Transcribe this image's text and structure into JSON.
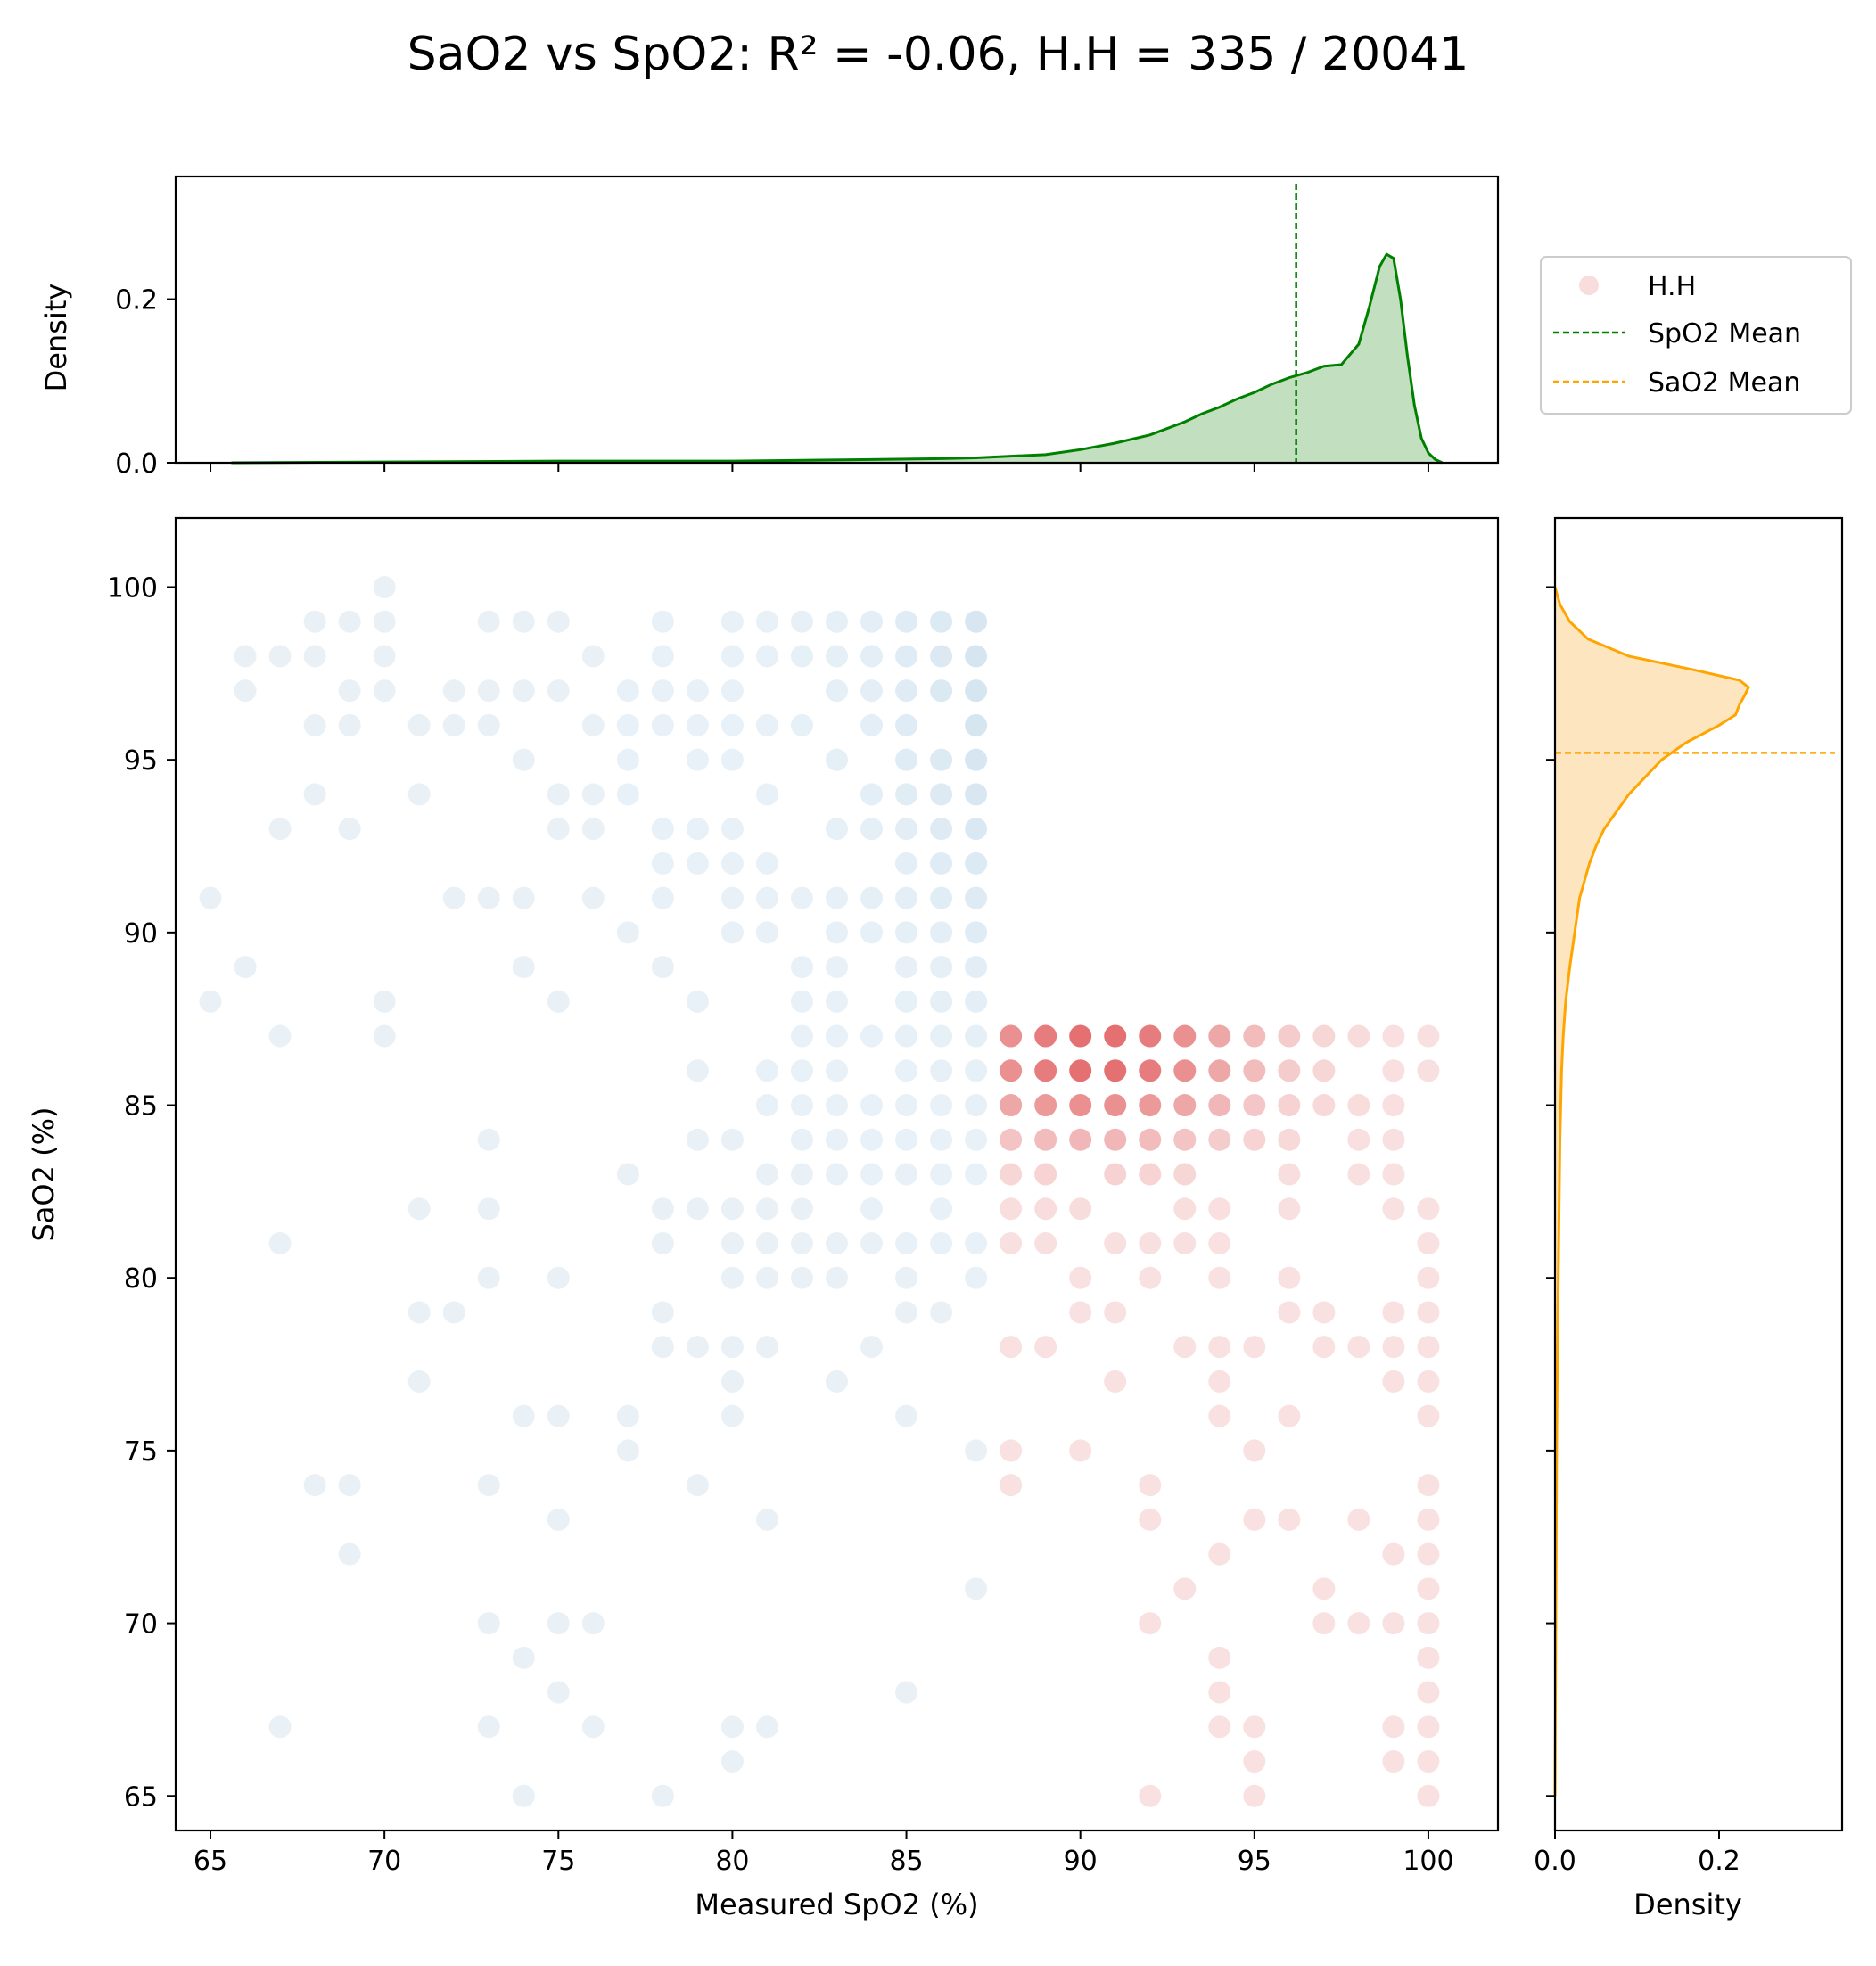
{
  "chart_data": {
    "type": "scatter",
    "title": "SaO2 vs SpO2: R² = -0.06, H.H = 335 / 20041",
    "main": {
      "xlabel": "Measured SpO2 (%)",
      "ylabel": "SaO2 (%)",
      "xlim": [
        64,
        102
      ],
      "ylim": [
        64,
        102
      ],
      "xticks": [
        "65",
        "70",
        "75",
        "80",
        "85",
        "90",
        "95",
        "100"
      ],
      "yticks": [
        "65",
        "70",
        "75",
        "80",
        "85",
        "90",
        "95",
        "100"
      ],
      "hh_region": "SaO2 < 88 and SpO2 >= 88",
      "hh_color": "#d62728",
      "normal_color": "#1f77b4",
      "normal_points": {
        "100": [
          70
        ],
        "99": [
          68,
          69,
          70,
          73,
          74,
          75,
          78,
          80,
          81,
          82,
          83,
          84,
          85,
          86,
          87
        ],
        "98": [
          66,
          67,
          68,
          70,
          76,
          78,
          80,
          81,
          82,
          83,
          84,
          85,
          86,
          87
        ],
        "97": [
          66,
          69,
          70,
          72,
          73,
          74,
          75,
          77,
          78,
          79,
          80,
          83,
          84,
          85,
          86,
          87
        ],
        "96": [
          68,
          69,
          71,
          72,
          73,
          76,
          77,
          78,
          79,
          80,
          81,
          82,
          84,
          85,
          87
        ],
        "95": [
          74,
          77,
          79,
          80,
          83,
          85,
          86,
          87
        ],
        "94": [
          68,
          71,
          75,
          76,
          77,
          81,
          84,
          85,
          86,
          87
        ],
        "93": [
          67,
          69,
          75,
          76,
          78,
          79,
          80,
          83,
          84,
          85,
          86,
          87
        ],
        "92": [
          78,
          79,
          80,
          81,
          85,
          86,
          87
        ],
        "91": [
          65,
          72,
          73,
          74,
          76,
          78,
          80,
          81,
          82,
          83,
          84,
          85,
          86,
          87
        ],
        "90": [
          77,
          80,
          81,
          83,
          84,
          85,
          86,
          87
        ],
        "89": [
          66,
          74,
          78,
          82,
          83,
          85,
          86,
          87
        ],
        "88": [
          65,
          70,
          75,
          79,
          82,
          83,
          85,
          86,
          87
        ],
        "87": [
          67,
          70,
          82,
          83,
          84,
          85,
          86,
          87
        ],
        "86": [
          79,
          81,
          82,
          83,
          85,
          86,
          87
        ],
        "85": [
          81,
          82,
          83,
          84,
          85,
          86,
          87
        ],
        "84": [
          73,
          79,
          80,
          82,
          83,
          84,
          85,
          86,
          87
        ],
        "83": [
          77,
          81,
          82,
          83,
          84,
          85,
          86,
          87
        ],
        "82": [
          71,
          73,
          78,
          79,
          80,
          81,
          82,
          84,
          86
        ],
        "81": [
          67,
          78,
          80,
          81,
          82,
          83,
          84,
          85,
          86,
          87
        ],
        "80": [
          73,
          75,
          80,
          81,
          82,
          83,
          85,
          87
        ],
        "79": [
          71,
          72,
          78,
          85,
          86
        ],
        "78": [
          78,
          79,
          80,
          81,
          84
        ],
        "77": [
          71,
          80,
          83
        ],
        "76": [
          74,
          75,
          77,
          80,
          85
        ],
        "75": [
          77,
          87
        ],
        "74": [
          68,
          69,
          73,
          79
        ],
        "73": [
          75,
          81
        ],
        "72": [
          69
        ],
        "71": [
          87
        ],
        "70": [
          73,
          75,
          76
        ],
        "69": [
          74
        ],
        "68": [
          75,
          85
        ],
        "67": [
          67,
          73,
          76,
          80,
          81
        ],
        "66": [
          80
        ],
        "65": [
          74,
          78
        ]
      },
      "hh_points": {
        "87": [
          88,
          89,
          90,
          91,
          92,
          93,
          94,
          95,
          96,
          97,
          98,
          99,
          100
        ],
        "86": [
          88,
          89,
          90,
          91,
          92,
          93,
          94,
          95,
          96,
          97,
          99,
          100
        ],
        "85": [
          88,
          89,
          90,
          91,
          92,
          93,
          94,
          95,
          96,
          97,
          98,
          99
        ],
        "84": [
          88,
          89,
          90,
          91,
          92,
          93,
          94,
          95,
          96,
          98,
          99
        ],
        "83": [
          88,
          89,
          91,
          92,
          93,
          96,
          98,
          99
        ],
        "82": [
          88,
          89,
          90,
          93,
          94,
          96,
          99,
          100
        ],
        "81": [
          88,
          89,
          91,
          92,
          93,
          94,
          100
        ],
        "80": [
          90,
          92,
          94,
          96,
          100
        ],
        "79": [
          90,
          91,
          96,
          97,
          99,
          100
        ],
        "78": [
          88,
          89,
          93,
          94,
          95,
          97,
          98,
          99,
          100
        ],
        "77": [
          91,
          94,
          99,
          100
        ],
        "76": [
          94,
          96,
          100
        ],
        "75": [
          88,
          90,
          95
        ],
        "74": [
          88,
          92,
          100
        ],
        "73": [
          92,
          95,
          96,
          98,
          100
        ],
        "72": [
          94,
          99,
          100
        ],
        "71": [
          93,
          97,
          100
        ],
        "70": [
          92,
          97,
          98,
          99,
          100
        ],
        "69": [
          94,
          100
        ],
        "68": [
          94,
          100
        ],
        "67": [
          94,
          95,
          99,
          100
        ],
        "66": [
          95,
          99,
          100
        ],
        "65": [
          92,
          95,
          100
        ]
      }
    },
    "top_marginal": {
      "type": "area",
      "ylabel": "Density",
      "yticks": [
        "0.0",
        "0.2"
      ],
      "ylim": [
        0,
        0.35
      ],
      "color": "#008000",
      "fill": "#c2e0c0",
      "mean_line": 96.2,
      "x": [
        65.6,
        70,
        75,
        78,
        80,
        82,
        84,
        86,
        87,
        88,
        89,
        90,
        91,
        92,
        93,
        93.5,
        94,
        94.5,
        95,
        95.5,
        96,
        96.5,
        97,
        97.5,
        98,
        98.3,
        98.6,
        98.8,
        99,
        99.2,
        99.4,
        99.6,
        99.8,
        100,
        100.2,
        100.4
      ],
      "y": [
        0.0,
        0.001,
        0.002,
        0.002,
        0.002,
        0.003,
        0.004,
        0.005,
        0.006,
        0.008,
        0.01,
        0.016,
        0.024,
        0.034,
        0.05,
        0.06,
        0.068,
        0.078,
        0.086,
        0.096,
        0.104,
        0.11,
        0.118,
        0.12,
        0.145,
        0.19,
        0.24,
        0.255,
        0.25,
        0.2,
        0.13,
        0.07,
        0.03,
        0.012,
        0.004,
        0.0
      ]
    },
    "right_marginal": {
      "type": "area",
      "xlabel": "Density",
      "xticks": [
        "0.0",
        "0.2"
      ],
      "xlim": [
        0,
        0.35
      ],
      "color": "#ffa500",
      "fill": "#fde6bf",
      "mean_line": 95.2,
      "sao2": [
        65,
        70,
        75,
        78,
        80,
        82,
        84,
        86,
        87,
        88,
        89,
        90,
        91,
        91.5,
        92,
        92.5,
        93,
        93.5,
        94,
        94.5,
        95,
        95.5,
        96,
        96.3,
        96.6,
        96.9,
        97.1,
        97.3,
        97.6,
        98,
        98.5,
        99,
        99.5,
        100
      ],
      "density": [
        0.0,
        0.001,
        0.002,
        0.003,
        0.004,
        0.005,
        0.006,
        0.008,
        0.01,
        0.013,
        0.018,
        0.024,
        0.03,
        0.036,
        0.042,
        0.05,
        0.06,
        0.075,
        0.09,
        0.11,
        0.13,
        0.16,
        0.2,
        0.22,
        0.225,
        0.232,
        0.236,
        0.225,
        0.17,
        0.09,
        0.04,
        0.018,
        0.006,
        0.0
      ]
    },
    "legend": {
      "placement": "top-right",
      "entries": [
        {
          "label": "H.H",
          "kind": "marker",
          "color": "#f9dcdc"
        },
        {
          "label": "SpO2 Mean",
          "kind": "dashed",
          "color": "#008000"
        },
        {
          "label": "SaO2 Mean",
          "kind": "dashed",
          "color": "#ffa500"
        }
      ]
    }
  }
}
